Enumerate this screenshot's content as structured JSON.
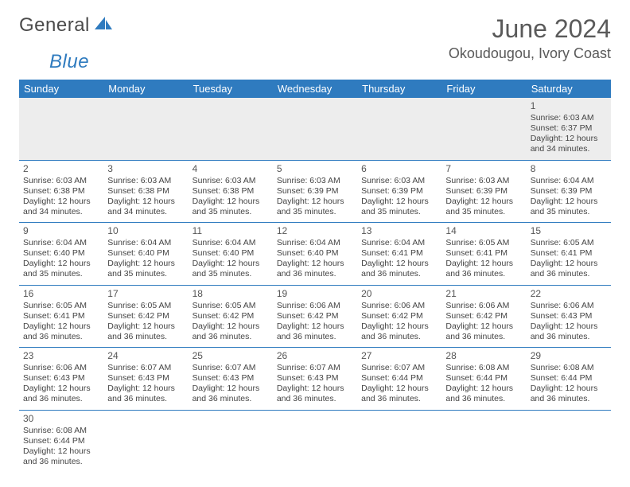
{
  "brand": {
    "part1": "General",
    "part2": "Blue"
  },
  "title": "June 2024",
  "location": "Okoudougou, Ivory Coast",
  "colors": {
    "header_bg": "#2f7bbf",
    "header_text": "#ffffff",
    "grid_line": "#2f7bbf",
    "empty_bg": "#ededed",
    "body_text": "#444",
    "title_text": "#5a5a5a"
  },
  "day_headers": [
    "Sunday",
    "Monday",
    "Tuesday",
    "Wednesday",
    "Thursday",
    "Friday",
    "Saturday"
  ],
  "labels": {
    "sunrise_prefix": "Sunrise: ",
    "sunset_prefix": "Sunset: ",
    "daylight_prefix": "Daylight: "
  },
  "weeks": [
    [
      null,
      null,
      null,
      null,
      null,
      null,
      {
        "n": "1",
        "sunrise": "6:03 AM",
        "sunset": "6:37 PM",
        "daylight": "12 hours and 34 minutes."
      }
    ],
    [
      {
        "n": "2",
        "sunrise": "6:03 AM",
        "sunset": "6:38 PM",
        "daylight": "12 hours and 34 minutes."
      },
      {
        "n": "3",
        "sunrise": "6:03 AM",
        "sunset": "6:38 PM",
        "daylight": "12 hours and 34 minutes."
      },
      {
        "n": "4",
        "sunrise": "6:03 AM",
        "sunset": "6:38 PM",
        "daylight": "12 hours and 35 minutes."
      },
      {
        "n": "5",
        "sunrise": "6:03 AM",
        "sunset": "6:39 PM",
        "daylight": "12 hours and 35 minutes."
      },
      {
        "n": "6",
        "sunrise": "6:03 AM",
        "sunset": "6:39 PM",
        "daylight": "12 hours and 35 minutes."
      },
      {
        "n": "7",
        "sunrise": "6:03 AM",
        "sunset": "6:39 PM",
        "daylight": "12 hours and 35 minutes."
      },
      {
        "n": "8",
        "sunrise": "6:04 AM",
        "sunset": "6:39 PM",
        "daylight": "12 hours and 35 minutes."
      }
    ],
    [
      {
        "n": "9",
        "sunrise": "6:04 AM",
        "sunset": "6:40 PM",
        "daylight": "12 hours and 35 minutes."
      },
      {
        "n": "10",
        "sunrise": "6:04 AM",
        "sunset": "6:40 PM",
        "daylight": "12 hours and 35 minutes."
      },
      {
        "n": "11",
        "sunrise": "6:04 AM",
        "sunset": "6:40 PM",
        "daylight": "12 hours and 35 minutes."
      },
      {
        "n": "12",
        "sunrise": "6:04 AM",
        "sunset": "6:40 PM",
        "daylight": "12 hours and 36 minutes."
      },
      {
        "n": "13",
        "sunrise": "6:04 AM",
        "sunset": "6:41 PM",
        "daylight": "12 hours and 36 minutes."
      },
      {
        "n": "14",
        "sunrise": "6:05 AM",
        "sunset": "6:41 PM",
        "daylight": "12 hours and 36 minutes."
      },
      {
        "n": "15",
        "sunrise": "6:05 AM",
        "sunset": "6:41 PM",
        "daylight": "12 hours and 36 minutes."
      }
    ],
    [
      {
        "n": "16",
        "sunrise": "6:05 AM",
        "sunset": "6:41 PM",
        "daylight": "12 hours and 36 minutes."
      },
      {
        "n": "17",
        "sunrise": "6:05 AM",
        "sunset": "6:42 PM",
        "daylight": "12 hours and 36 minutes."
      },
      {
        "n": "18",
        "sunrise": "6:05 AM",
        "sunset": "6:42 PM",
        "daylight": "12 hours and 36 minutes."
      },
      {
        "n": "19",
        "sunrise": "6:06 AM",
        "sunset": "6:42 PM",
        "daylight": "12 hours and 36 minutes."
      },
      {
        "n": "20",
        "sunrise": "6:06 AM",
        "sunset": "6:42 PM",
        "daylight": "12 hours and 36 minutes."
      },
      {
        "n": "21",
        "sunrise": "6:06 AM",
        "sunset": "6:42 PM",
        "daylight": "12 hours and 36 minutes."
      },
      {
        "n": "22",
        "sunrise": "6:06 AM",
        "sunset": "6:43 PM",
        "daylight": "12 hours and 36 minutes."
      }
    ],
    [
      {
        "n": "23",
        "sunrise": "6:06 AM",
        "sunset": "6:43 PM",
        "daylight": "12 hours and 36 minutes."
      },
      {
        "n": "24",
        "sunrise": "6:07 AM",
        "sunset": "6:43 PM",
        "daylight": "12 hours and 36 minutes."
      },
      {
        "n": "25",
        "sunrise": "6:07 AM",
        "sunset": "6:43 PM",
        "daylight": "12 hours and 36 minutes."
      },
      {
        "n": "26",
        "sunrise": "6:07 AM",
        "sunset": "6:43 PM",
        "daylight": "12 hours and 36 minutes."
      },
      {
        "n": "27",
        "sunrise": "6:07 AM",
        "sunset": "6:44 PM",
        "daylight": "12 hours and 36 minutes."
      },
      {
        "n": "28",
        "sunrise": "6:08 AM",
        "sunset": "6:44 PM",
        "daylight": "12 hours and 36 minutes."
      },
      {
        "n": "29",
        "sunrise": "6:08 AM",
        "sunset": "6:44 PM",
        "daylight": "12 hours and 36 minutes."
      }
    ],
    [
      {
        "n": "30",
        "sunrise": "6:08 AM",
        "sunset": "6:44 PM",
        "daylight": "12 hours and 36 minutes."
      },
      null,
      null,
      null,
      null,
      null,
      null
    ]
  ]
}
